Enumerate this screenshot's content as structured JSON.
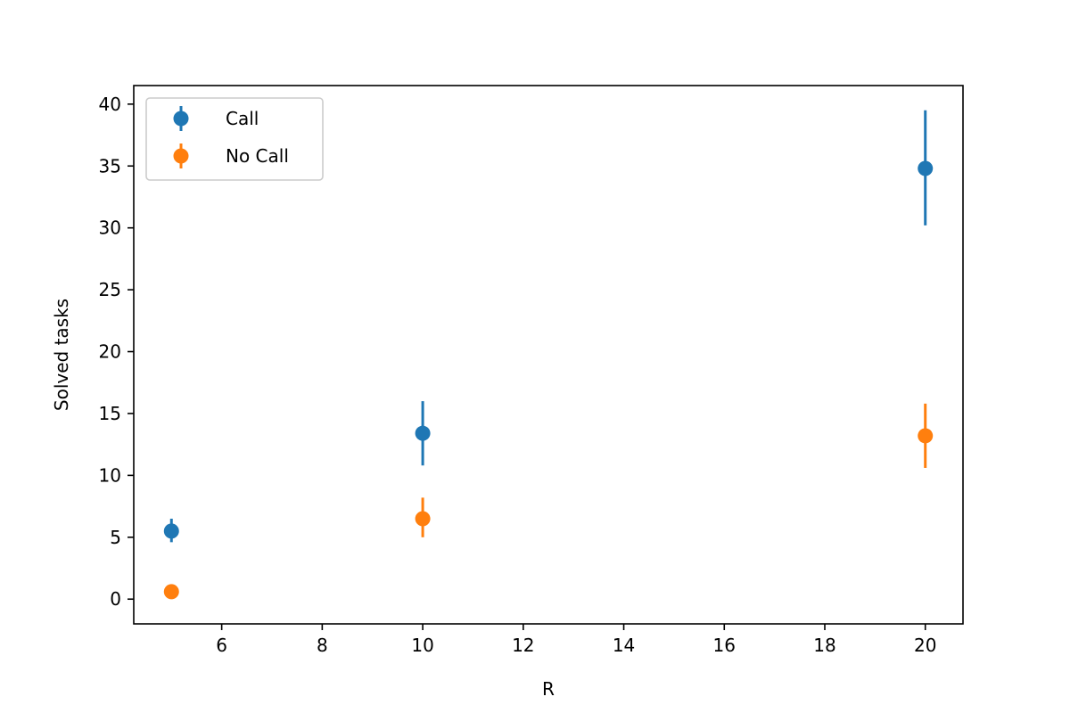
{
  "chart_data": {
    "type": "scatter",
    "title": "",
    "xlabel": "R",
    "ylabel": "Solved tasks",
    "xlim": [
      4.25,
      20.75
    ],
    "ylim": [
      -2,
      41.5
    ],
    "xticks": [
      6,
      8,
      10,
      12,
      14,
      16,
      18,
      20
    ],
    "yticks": [
      0,
      5,
      10,
      15,
      20,
      25,
      30,
      35,
      40
    ],
    "grid": false,
    "legend_position": "upper-left",
    "series": [
      {
        "name": "Call",
        "color": "#1f77b4",
        "x": [
          5,
          10,
          20
        ],
        "y": [
          5.5,
          13.4,
          34.8
        ],
        "yerr_low": [
          4.6,
          10.8,
          30.2
        ],
        "yerr_high": [
          6.5,
          16.0,
          39.5
        ]
      },
      {
        "name": "No Call",
        "color": "#ff7f0e",
        "x": [
          5,
          10,
          20
        ],
        "y": [
          0.6,
          6.5,
          13.2
        ],
        "yerr_low": [
          0.2,
          5.0,
          10.6
        ],
        "yerr_high": [
          1.0,
          8.2,
          15.8
        ]
      }
    ]
  }
}
